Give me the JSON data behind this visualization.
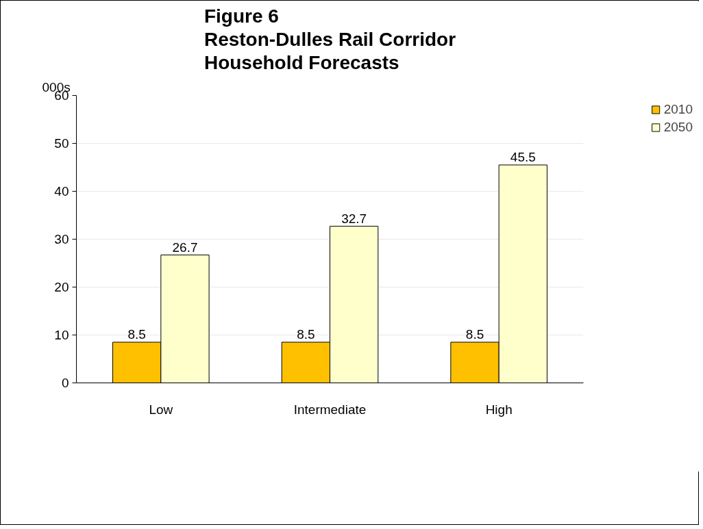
{
  "chart_data": {
    "type": "bar",
    "title": "Figure 6\nReston-Dulles Rail Corridor\nHousehold  Forecasts",
    "ylabel": "000s",
    "categories": [
      "Low",
      "Intermediate",
      "High"
    ],
    "series": [
      {
        "name": "2010",
        "color": "#ffc000",
        "values": [
          8.5,
          8.5,
          8.5
        ]
      },
      {
        "name": "2050",
        "color": "#ffffcc",
        "values": [
          26.7,
          32.7,
          45.5
        ]
      }
    ],
    "ylim": [
      0,
      60
    ],
    "yticks": [
      0,
      10,
      20,
      30,
      40,
      50,
      60
    ],
    "grid": "y",
    "legend": "right",
    "data_labels": true
  }
}
